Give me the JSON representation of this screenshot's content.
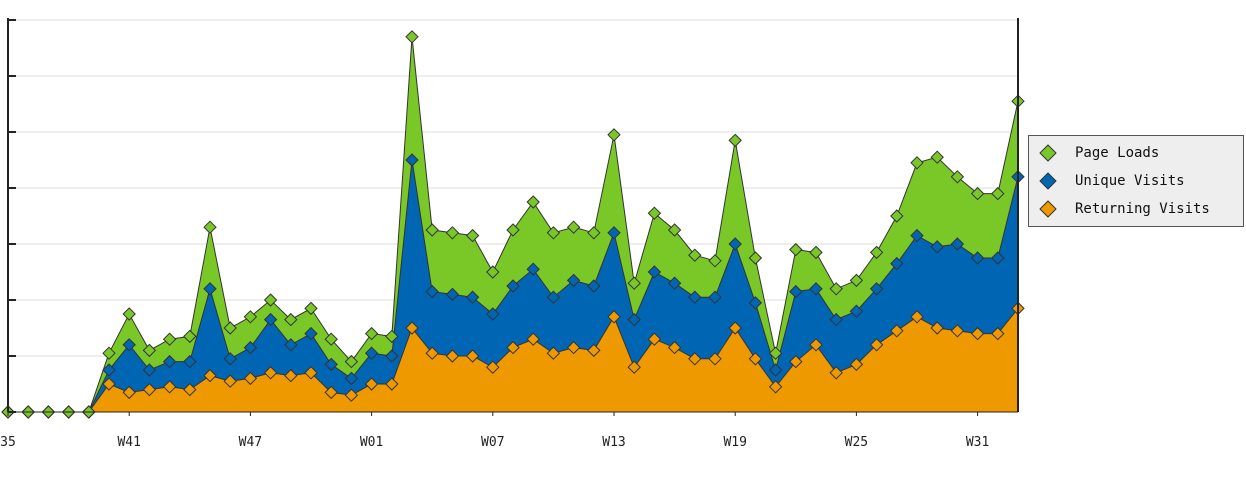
{
  "chart_data": {
    "type": "area",
    "stacked": true,
    "x_tick_labels": [
      "35",
      "W41",
      "W47",
      "W01",
      "W07",
      "W13",
      "W19",
      "W25",
      "W31"
    ],
    "x_tick_positions": [
      0,
      6,
      12,
      18,
      24,
      30,
      36,
      42,
      48
    ],
    "n_points": 51,
    "ylim": [
      0,
      7
    ],
    "grid": true,
    "legend_position": "right",
    "series": [
      {
        "name": "Returning Visits",
        "color": "#ee9900",
        "values": [
          0,
          0,
          0,
          0,
          0,
          0.5,
          0.35,
          0.4,
          0.45,
          0.4,
          0.65,
          0.55,
          0.6,
          0.7,
          0.65,
          0.7,
          0.35,
          0.3,
          0.5,
          0.5,
          1.5,
          1.05,
          1.0,
          1.0,
          0.8,
          1.15,
          1.3,
          1.05,
          1.15,
          1.1,
          1.7,
          0.8,
          1.3,
          1.15,
          0.95,
          0.95,
          1.5,
          0.95,
          0.45,
          0.9,
          1.2,
          0.7,
          0.85,
          1.2,
          1.45,
          1.7,
          1.5,
          1.45,
          1.4,
          1.4,
          1.85
        ]
      },
      {
        "name": "Unique Visits",
        "color": "#0066b3",
        "values": [
          0,
          0,
          0,
          0,
          0,
          0.25,
          0.85,
          0.35,
          0.45,
          0.5,
          1.55,
          0.4,
          0.55,
          0.95,
          0.55,
          0.7,
          0.5,
          0.3,
          0.55,
          0.5,
          3.0,
          1.1,
          1.1,
          1.05,
          0.95,
          1.1,
          1.25,
          1.0,
          1.2,
          1.15,
          1.5,
          0.85,
          1.2,
          1.15,
          1.1,
          1.1,
          1.5,
          1.0,
          0.3,
          1.25,
          1.0,
          0.95,
          0.95,
          1.0,
          1.2,
          1.45,
          1.45,
          1.55,
          1.35,
          1.35,
          2.35
        ]
      },
      {
        "name": "Page Loads",
        "color": "#7ac728",
        "values": [
          0,
          0,
          0,
          0,
          0,
          0.3,
          0.55,
          0.35,
          0.4,
          0.45,
          1.1,
          0.55,
          0.55,
          0.35,
          0.45,
          0.45,
          0.45,
          0.3,
          0.35,
          0.35,
          2.2,
          1.1,
          1.1,
          1.1,
          0.75,
          1.0,
          1.2,
          1.15,
          0.95,
          0.95,
          1.75,
          0.65,
          1.05,
          0.95,
          0.75,
          0.65,
          1.85,
          0.8,
          0.3,
          0.75,
          0.65,
          0.55,
          0.55,
          0.65,
          0.85,
          1.3,
          1.6,
          1.2,
          1.15,
          1.15,
          1.35
        ]
      }
    ]
  },
  "legend": {
    "items": [
      {
        "label": "Page Loads",
        "color": "#7ac728"
      },
      {
        "label": "Unique Visits",
        "color": "#0066b3"
      },
      {
        "label": "Returning Visits",
        "color": "#ee9900"
      }
    ]
  }
}
